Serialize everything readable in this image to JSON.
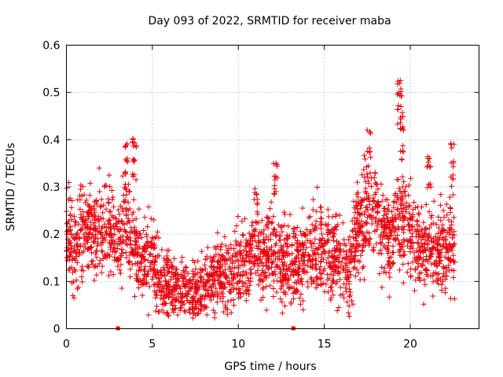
{
  "chart_data": {
    "type": "scatter",
    "title": "Day 093 of 2022, SRMTID for receiver maba",
    "xlabel": "GPS time / hours",
    "ylabel": "SRMTID / TECUs",
    "xlim": [
      0,
      24
    ],
    "ylim": [
      0,
      0.6
    ],
    "x_ticks": [
      0,
      5,
      10,
      15,
      20
    ],
    "y_ticks": [
      0,
      0.1,
      0.2,
      0.3,
      0.4,
      0.5,
      0.6
    ],
    "x_tick_labels": [
      "0",
      "5",
      "10",
      "15",
      "20"
    ],
    "y_tick_labels": [
      "0",
      "0.1",
      "0.2",
      "0.3",
      "0.4",
      "0.5",
      "0.6"
    ],
    "grid": true,
    "marker": "plus",
    "series_color": "#e8000b",
    "data_range": [
      0,
      22.6
    ],
    "trend": {
      "x": [
        0,
        0.5,
        1,
        1.5,
        2,
        2.5,
        3,
        3.5,
        4,
        4.5,
        5,
        5.5,
        6,
        6.5,
        7,
        7.5,
        8,
        8.5,
        9,
        9.5,
        10,
        10.5,
        11,
        11.5,
        12,
        12.5,
        13,
        13.5,
        14,
        14.5,
        15,
        15.5,
        16,
        16.5,
        17,
        17.5,
        18,
        18.5,
        19,
        19.5,
        20,
        20.5,
        21,
        21.5,
        22,
        22.5
      ],
      "y": [
        0.19,
        0.17,
        0.22,
        0.2,
        0.19,
        0.21,
        0.18,
        0.22,
        0.17,
        0.14,
        0.14,
        0.1,
        0.09,
        0.09,
        0.08,
        0.08,
        0.09,
        0.1,
        0.12,
        0.12,
        0.13,
        0.13,
        0.16,
        0.15,
        0.18,
        0.15,
        0.13,
        0.13,
        0.15,
        0.17,
        0.18,
        0.15,
        0.13,
        0.13,
        0.22,
        0.25,
        0.24,
        0.2,
        0.2,
        0.26,
        0.2,
        0.17,
        0.16,
        0.15,
        0.17,
        0.19
      ]
    },
    "spikes": [
      {
        "x": 3.5,
        "values": [
          0.3,
          0.33,
          0.36,
          0.39
        ]
      },
      {
        "x": 3.95,
        "values": [
          0.32,
          0.36,
          0.39,
          0.4
        ]
      },
      {
        "x": 11.05,
        "values": [
          0.27,
          0.29
        ]
      },
      {
        "x": 12.15,
        "values": [
          0.29,
          0.32,
          0.35
        ]
      },
      {
        "x": 17.6,
        "values": [
          0.38,
          0.42
        ]
      },
      {
        "x": 19.35,
        "values": [
          0.43,
          0.47,
          0.5,
          0.52
        ]
      },
      {
        "x": 19.5,
        "values": [
          0.38,
          0.42,
          0.45,
          0.5
        ]
      },
      {
        "x": 21.1,
        "values": [
          0.3,
          0.34,
          0.36
        ]
      },
      {
        "x": 22.45,
        "values": [
          0.32,
          0.35,
          0.39
        ]
      }
    ],
    "zero_markers": [
      {
        "x": 3.0,
        "y": 0
      },
      {
        "x": 13.2,
        "y": 0
      }
    ]
  }
}
